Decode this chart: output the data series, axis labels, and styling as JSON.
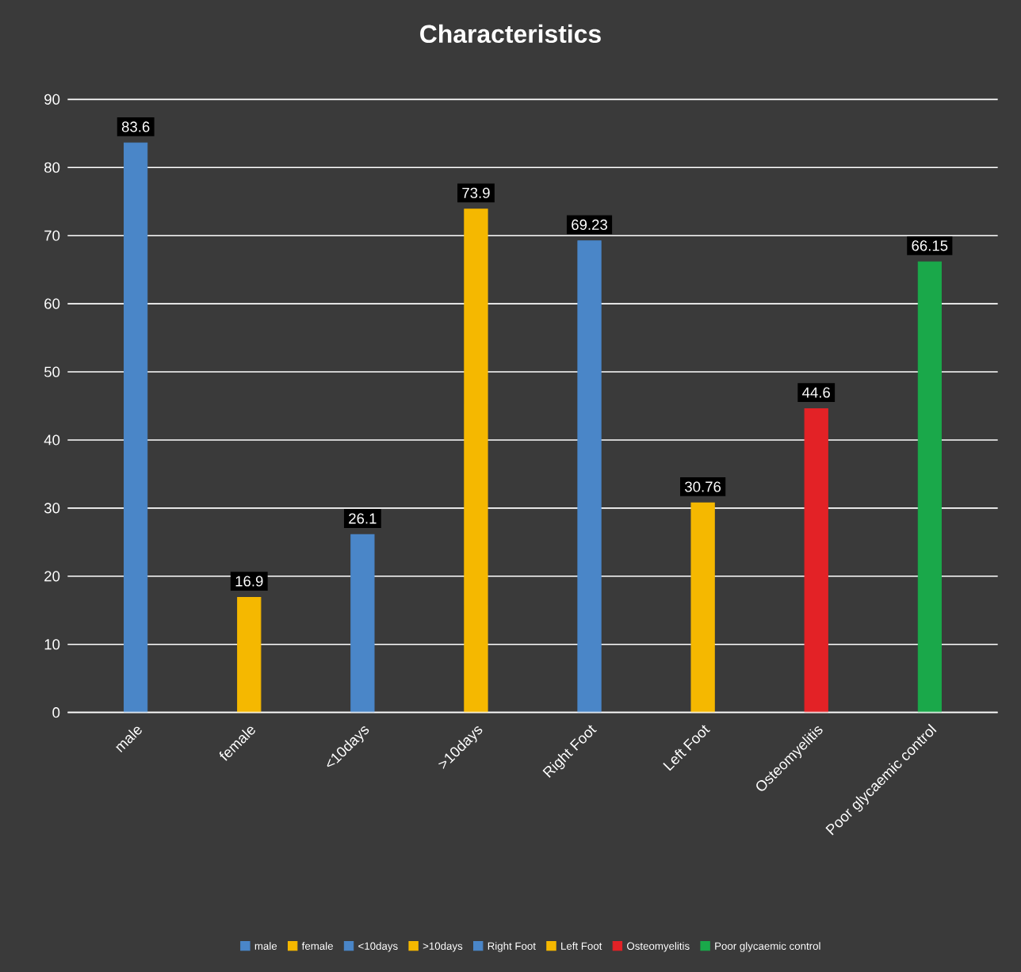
{
  "chart_data": {
    "type": "bar",
    "title": "Characteristics",
    "categories": [
      "male",
      "female",
      "<10days",
      ">10days",
      "Right Foot",
      "Left Foot",
      "Osteomyelitis",
      "Poor glycaemic control"
    ],
    "series": [
      {
        "name": "male",
        "color": "#4a86c8",
        "values": [
          83.6,
          null,
          null,
          null,
          null,
          null,
          null,
          null
        ]
      },
      {
        "name": "female",
        "color": "#f5b800",
        "values": [
          null,
          16.9,
          null,
          null,
          null,
          null,
          null,
          null
        ]
      },
      {
        "name": "<10days",
        "color": "#4a86c8",
        "values": [
          null,
          null,
          26.1,
          null,
          null,
          null,
          null,
          null
        ]
      },
      {
        "name": ">10days",
        "color": "#f5b800",
        "values": [
          null,
          null,
          null,
          73.9,
          null,
          null,
          null,
          null
        ]
      },
      {
        "name": "Right Foot",
        "color": "#4a86c8",
        "values": [
          null,
          null,
          null,
          null,
          69.23,
          null,
          null,
          null
        ]
      },
      {
        "name": "Left Foot",
        "color": "#f5b800",
        "values": [
          null,
          null,
          null,
          null,
          null,
          30.76,
          null,
          null
        ]
      },
      {
        "name": "Osteomyelitis",
        "color": "#e32226",
        "values": [
          null,
          null,
          null,
          null,
          null,
          null,
          44.6,
          null
        ]
      },
      {
        "name": "Poor glycaemic control",
        "color": "#1aa84a",
        "values": [
          null,
          null,
          null,
          null,
          null,
          null,
          null,
          66.15
        ]
      }
    ],
    "ylim": [
      0,
      90
    ],
    "yticks": [
      0,
      10,
      20,
      30,
      40,
      50,
      60,
      70,
      80,
      90
    ],
    "grid": "y",
    "legend": "bottom",
    "data_labels": true
  }
}
